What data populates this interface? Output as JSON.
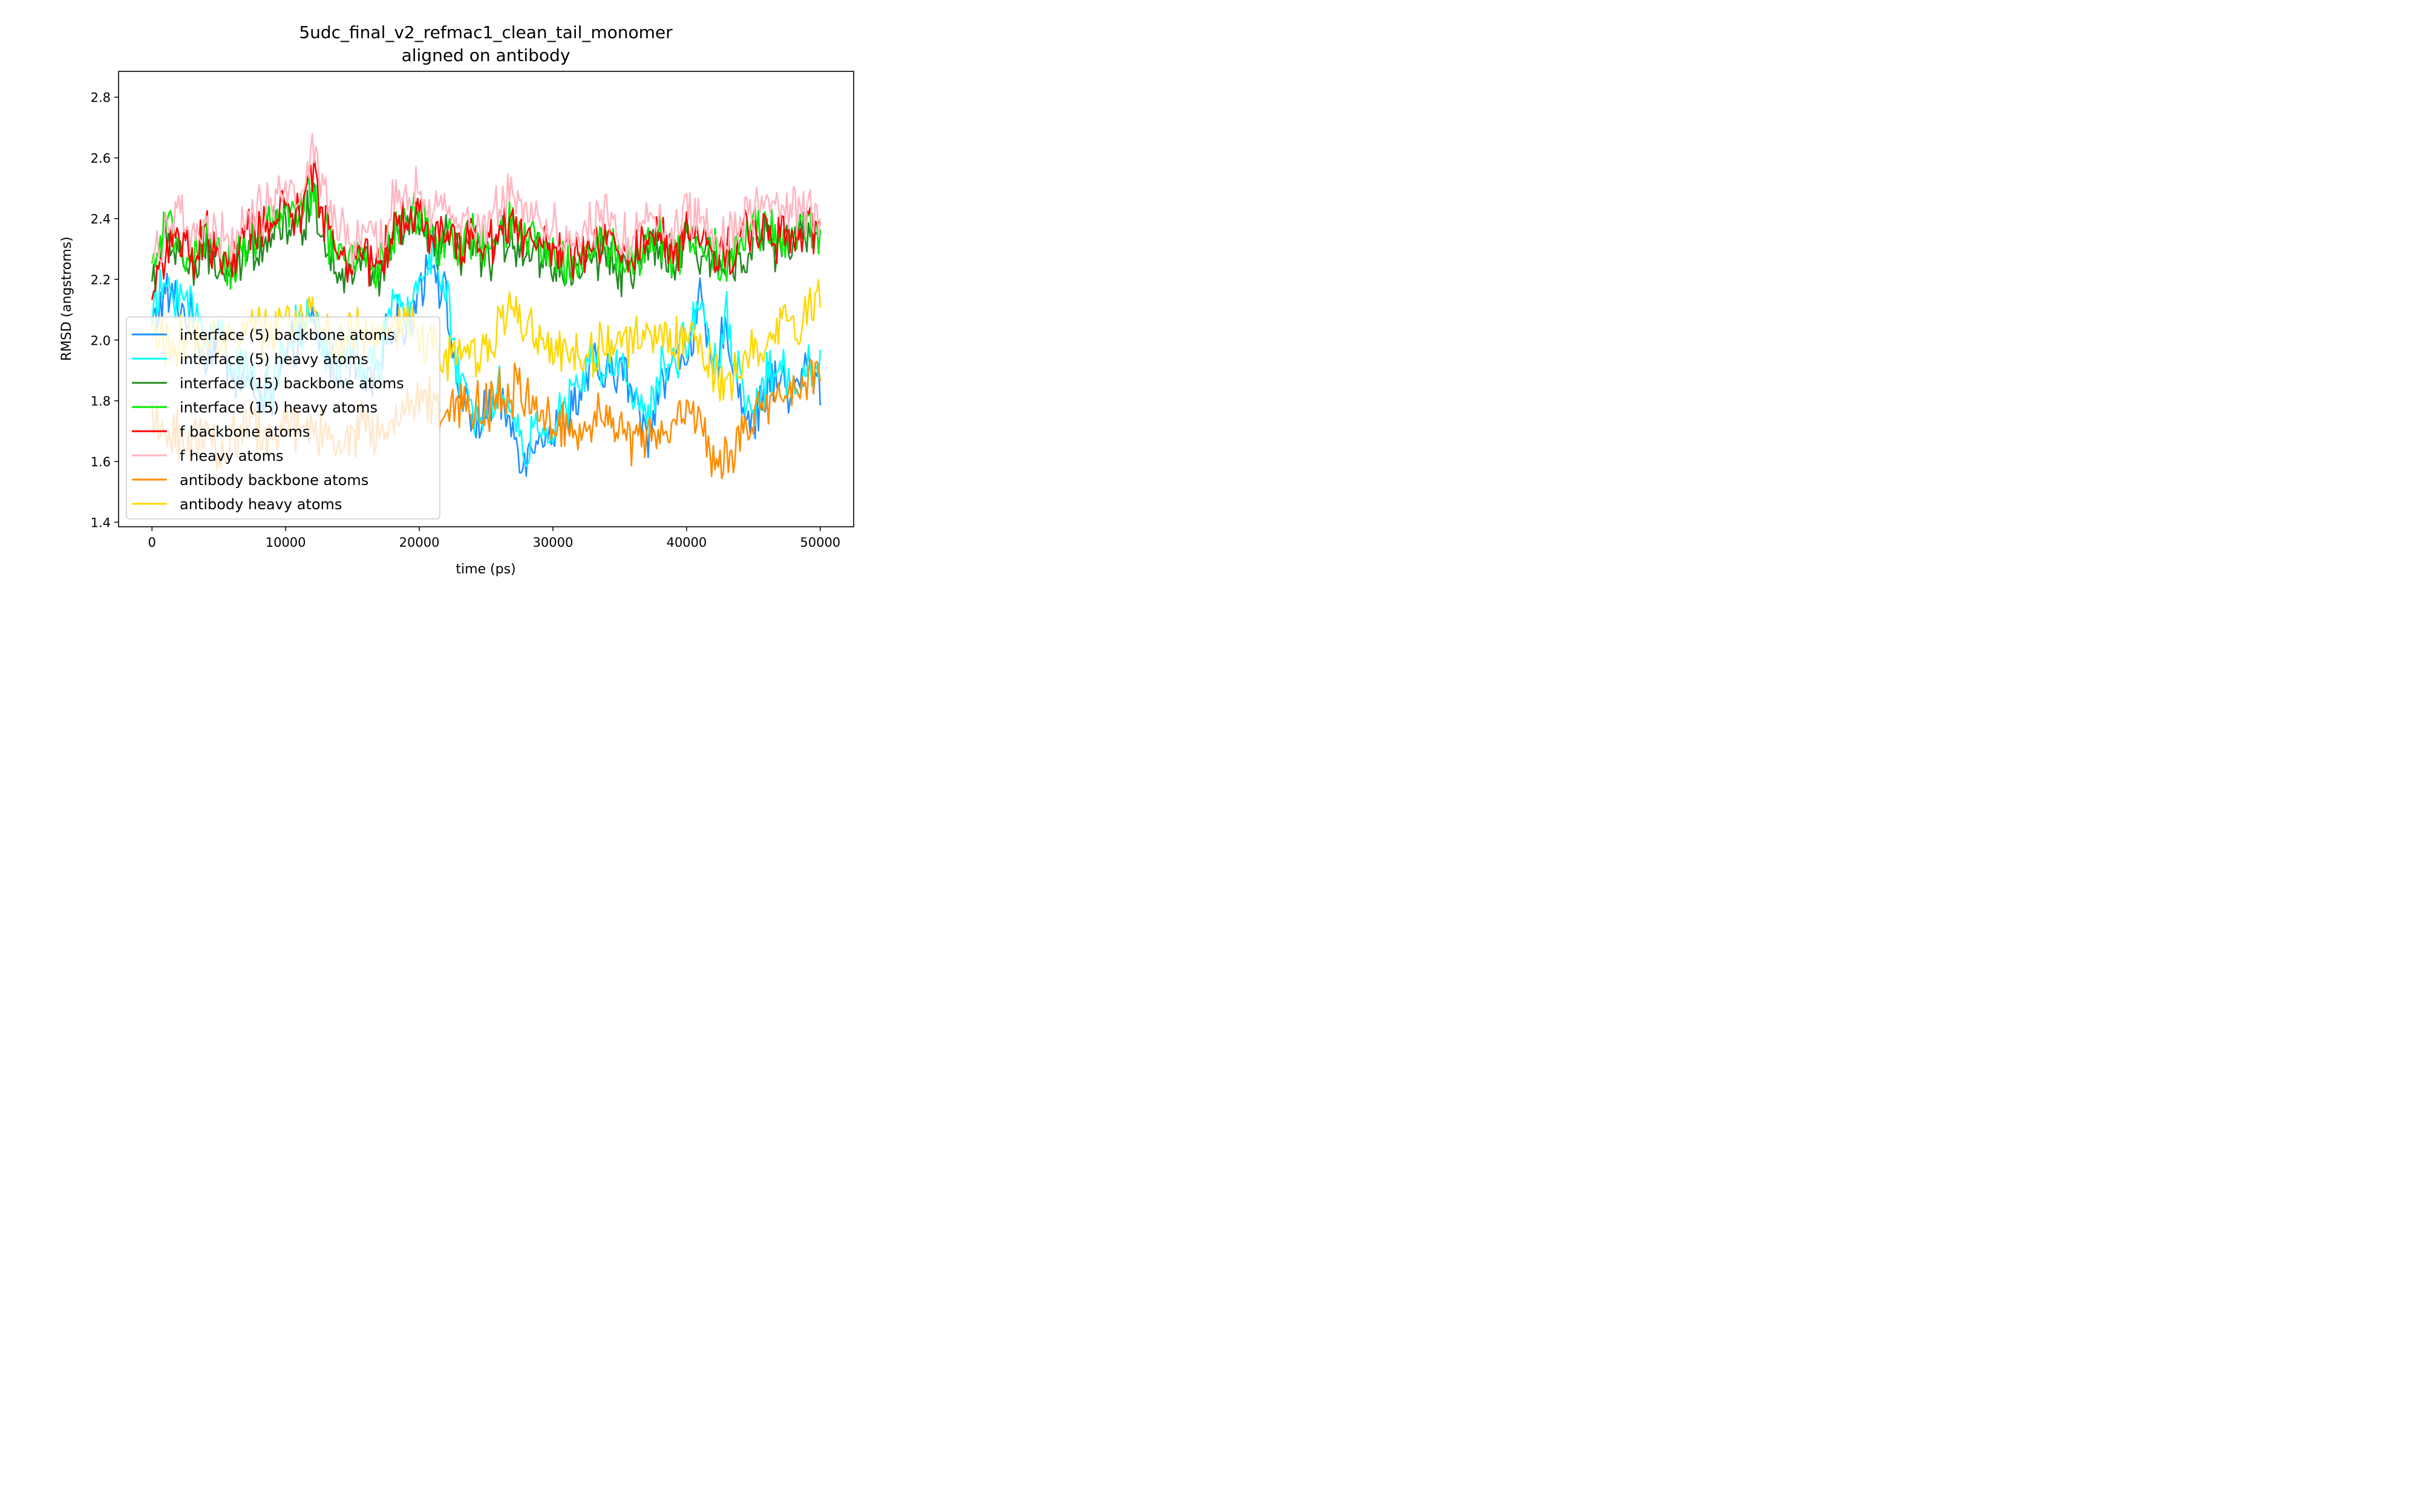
{
  "chart_data": {
    "type": "line",
    "title": "5udc_final_v2_refmac1_clean_tail_monomer",
    "subtitle": "aligned on antibody",
    "xlabel": "time (ps)",
    "ylabel": "RMSD (angstroms)",
    "xlim": [
      -2500,
      52500
    ],
    "ylim": [
      1.385,
      2.885
    ],
    "x_ticks": [
      0,
      10000,
      20000,
      30000,
      40000,
      50000
    ],
    "y_ticks": [
      1.4,
      1.6,
      1.8,
      2.0,
      2.2,
      2.4,
      2.6,
      2.8
    ],
    "y_tick_labels": [
      "1.4",
      "1.6",
      "1.8",
      "2.0",
      "2.2",
      "2.4",
      "2.6",
      "2.8"
    ],
    "grid": false,
    "legend_position": "lower-left",
    "x_sampling": {
      "start": 0,
      "end": 50000,
      "step": 1000
    },
    "series": [
      {
        "name": "interface (5) backbone atoms",
        "color": "#1E90FF",
        "values": [
          2.05,
          2.15,
          2.12,
          2.05,
          1.95,
          2.02,
          1.88,
          1.85,
          1.82,
          1.8,
          1.92,
          2.02,
          2.05,
          1.95,
          1.88,
          1.92,
          1.85,
          1.9,
          2.08,
          2.02,
          2.18,
          2.28,
          2.12,
          1.82,
          1.72,
          1.76,
          1.8,
          1.7,
          1.6,
          1.72,
          1.68,
          1.75,
          1.82,
          1.92,
          1.86,
          1.92,
          1.82,
          1.68,
          1.86,
          1.92,
          1.96,
          2.12,
          1.88,
          2.05,
          1.82,
          1.72,
          1.85,
          1.88,
          1.82,
          1.92,
          1.86
        ]
      },
      {
        "name": "interface (5) heavy atoms",
        "color": "#00FFFF",
        "values": [
          2.08,
          2.18,
          2.16,
          2.1,
          2.02,
          2.04,
          1.94,
          1.9,
          1.86,
          1.84,
          1.96,
          2.04,
          2.08,
          1.98,
          1.92,
          1.96,
          1.9,
          1.94,
          2.12,
          2.06,
          2.22,
          2.3,
          2.14,
          1.86,
          1.76,
          1.78,
          1.84,
          1.74,
          1.62,
          1.74,
          1.7,
          1.78,
          1.85,
          1.95,
          1.88,
          1.94,
          1.84,
          1.72,
          1.88,
          1.95,
          1.98,
          2.16,
          1.92,
          2.08,
          1.86,
          1.76,
          1.88,
          1.9,
          1.84,
          1.94,
          1.88
        ]
      },
      {
        "name": "interface (15) backbone atoms",
        "color": "#228B22",
        "values": [
          2.2,
          2.32,
          2.3,
          2.22,
          2.28,
          2.24,
          2.2,
          2.3,
          2.32,
          2.36,
          2.4,
          2.36,
          2.48,
          2.32,
          2.24,
          2.22,
          2.26,
          2.2,
          2.32,
          2.36,
          2.38,
          2.3,
          2.32,
          2.28,
          2.3,
          2.26,
          2.32,
          2.34,
          2.3,
          2.28,
          2.26,
          2.22,
          2.24,
          2.26,
          2.3,
          2.24,
          2.22,
          2.28,
          2.3,
          2.24,
          2.32,
          2.28,
          2.26,
          2.24,
          2.3,
          2.32,
          2.34,
          2.3,
          2.32,
          2.34,
          2.33
        ]
      },
      {
        "name": "interface (15) heavy atoms",
        "color": "#00EE00",
        "values": [
          2.23,
          2.35,
          2.33,
          2.25,
          2.31,
          2.27,
          2.23,
          2.33,
          2.35,
          2.39,
          2.43,
          2.39,
          2.51,
          2.35,
          2.27,
          2.25,
          2.29,
          2.23,
          2.35,
          2.39,
          2.41,
          2.33,
          2.35,
          2.31,
          2.33,
          2.29,
          2.35,
          2.37,
          2.33,
          2.31,
          2.29,
          2.25,
          2.27,
          2.29,
          2.33,
          2.27,
          2.25,
          2.31,
          2.33,
          2.27,
          2.35,
          2.31,
          2.29,
          2.27,
          2.33,
          2.35,
          2.37,
          2.33,
          2.35,
          2.37,
          2.35
        ]
      },
      {
        "name": "f backbone atoms",
        "color": "#FF0000",
        "values": [
          2.16,
          2.3,
          2.32,
          2.26,
          2.34,
          2.28,
          2.24,
          2.34,
          2.36,
          2.4,
          2.44,
          2.4,
          2.55,
          2.4,
          2.3,
          2.26,
          2.28,
          2.24,
          2.36,
          2.4,
          2.42,
          2.34,
          2.36,
          2.32,
          2.34,
          2.3,
          2.38,
          2.4,
          2.34,
          2.32,
          2.3,
          2.26,
          2.28,
          2.3,
          2.34,
          2.28,
          2.26,
          2.32,
          2.34,
          2.28,
          2.38,
          2.32,
          2.3,
          2.28,
          2.34,
          2.36,
          2.38,
          2.34,
          2.36,
          2.38,
          2.35
        ]
      },
      {
        "name": "f heavy atoms",
        "color": "#FFB6C1",
        "values": [
          2.26,
          2.38,
          2.4,
          2.32,
          2.38,
          2.34,
          2.3,
          2.4,
          2.42,
          2.46,
          2.52,
          2.46,
          2.62,
          2.46,
          2.36,
          2.32,
          2.34,
          2.3,
          2.44,
          2.48,
          2.5,
          2.4,
          2.42,
          2.38,
          2.4,
          2.36,
          2.46,
          2.48,
          2.44,
          2.4,
          2.38,
          2.32,
          2.34,
          2.36,
          2.42,
          2.34,
          2.34,
          2.4,
          2.42,
          2.34,
          2.44,
          2.4,
          2.38,
          2.34,
          2.4,
          2.42,
          2.46,
          2.4,
          2.42,
          2.44,
          2.4
        ]
      },
      {
        "name": "antibody backbone atoms",
        "color": "#FF8C00",
        "values": [
          1.7,
          1.72,
          1.68,
          1.66,
          1.7,
          1.62,
          1.68,
          1.74,
          1.7,
          1.66,
          1.72,
          1.7,
          1.74,
          1.68,
          1.64,
          1.7,
          1.72,
          1.68,
          1.72,
          1.76,
          1.8,
          1.82,
          1.78,
          1.8,
          1.78,
          1.76,
          1.82,
          1.84,
          1.8,
          1.76,
          1.74,
          1.72,
          1.7,
          1.74,
          1.78,
          1.72,
          1.68,
          1.66,
          1.7,
          1.74,
          1.76,
          1.72,
          1.62,
          1.6,
          1.68,
          1.74,
          1.8,
          1.78,
          1.82,
          1.86,
          1.9
        ]
      },
      {
        "name": "antibody heavy atoms",
        "color": "#FFD700",
        "values": [
          2.02,
          2.0,
          1.98,
          2.02,
          1.96,
          2.0,
          2.04,
          2.06,
          2.02,
          2.0,
          2.08,
          2.06,
          2.1,
          2.02,
          1.98,
          2.02,
          2.04,
          2.0,
          2.04,
          2.06,
          2.02,
          1.98,
          1.94,
          1.98,
          1.96,
          1.98,
          2.04,
          2.1,
          2.06,
          2.02,
          1.98,
          1.96,
          1.94,
          1.96,
          2.0,
          1.96,
          1.98,
          2.04,
          2.02,
          1.98,
          2.02,
          1.98,
          1.88,
          1.86,
          1.92,
          1.96,
          2.02,
          2.08,
          2.04,
          2.1,
          2.12
        ]
      }
    ]
  }
}
